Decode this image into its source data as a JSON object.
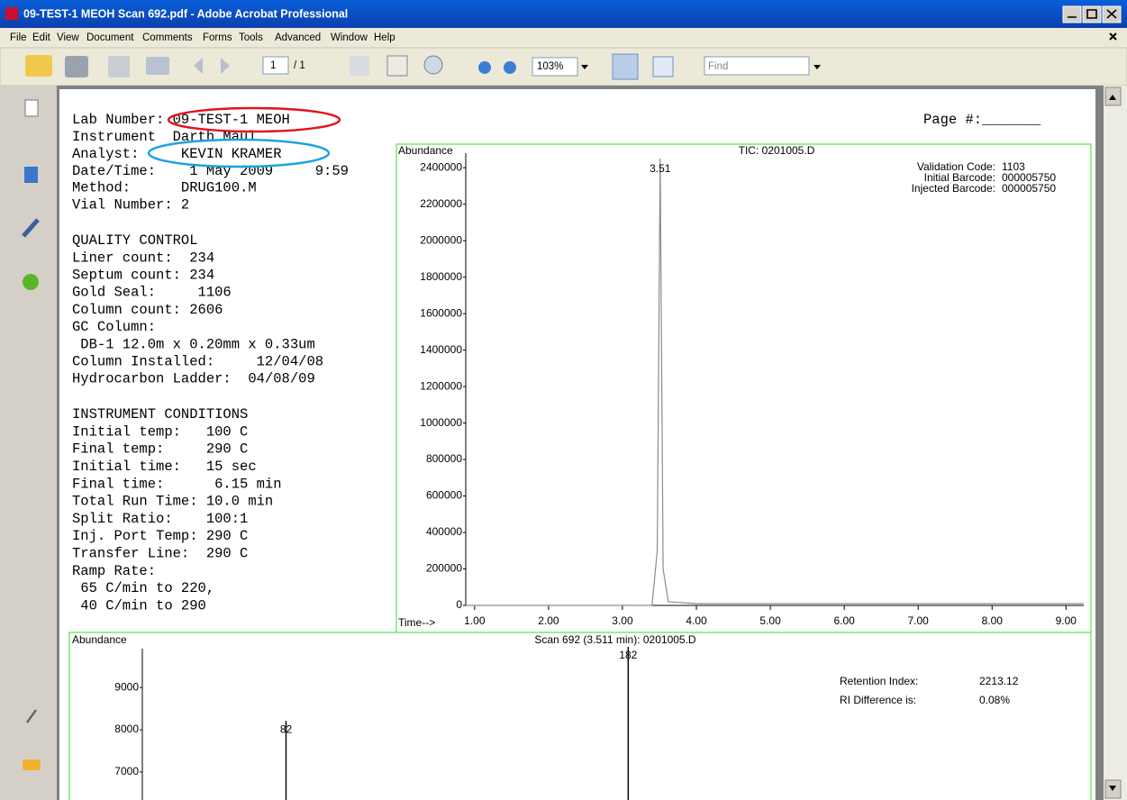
{
  "window": {
    "title": "09-TEST-1 MEOH Scan 692.pdf - Adobe Acrobat Professional"
  },
  "menu": [
    "File",
    "Edit",
    "View",
    "Document",
    "Comments",
    "Forms",
    "Tools",
    "Advanced",
    "Window",
    "Help"
  ],
  "toolbar": {
    "page": "1",
    "page_count": "/ 1",
    "zoom": "103%",
    "find": "Find"
  },
  "document": {
    "page_label": "Page #:_______",
    "header_lines": [
      "Lab Number: 09-TEST-1 MEOH",
      "Instrument  Darth Maul",
      "Analyst:     KEVIN KRAMER",
      "Date/Time:    1 May 2009     9:59",
      "Method:      DRUG100.M",
      "Vial Number: 2"
    ],
    "qc_lines": [
      "QUALITY CONTROL",
      "Liner count:  234",
      "Septum count: 234",
      "Gold Seal:     1106",
      "Column count: 2606",
      "GC Column:",
      " DB-1 12.0m x 0.20mm x 0.33um",
      "Column Installed:     12/04/08",
      "Hydrocarbon Ladder:  04/08/09"
    ],
    "conditions_lines": [
      "INSTRUMENT CONDITIONS",
      "Initial temp:   100 C",
      "Final temp:     290 C",
      "Initial time:   15 sec",
      "Final time:      6.15 min",
      "Total Run Time: 10.0 min",
      "Split Ratio:    100:1",
      "Inj. Port Temp: 290 C",
      "Transfer Line:  290 C",
      "Ramp Rate:",
      " 65 C/min to 220,",
      " 40 C/min to 290"
    ]
  },
  "chart_data": [
    {
      "type": "line",
      "title": "TIC: 0201005.D",
      "y_label": "Abundance",
      "x_label": "Time-->",
      "x": [
        0.88,
        3.4,
        3.47,
        3.51,
        3.55,
        3.62,
        4.0,
        9.24
      ],
      "values": [
        0,
        0,
        300000,
        2450000,
        200000,
        20000,
        10000,
        10000
      ],
      "color": "#8c8c8c",
      "peak_label": "3.51",
      "xlim": [
        0.88,
        9.24
      ],
      "xticks": [
        {
          "value": 1,
          "label": "1.00"
        },
        {
          "value": 2,
          "label": "2.00"
        },
        {
          "value": 3,
          "label": "3.00"
        },
        {
          "value": 4,
          "label": "4.00"
        },
        {
          "value": 5,
          "label": "5.00"
        },
        {
          "value": 6,
          "label": "6.00"
        },
        {
          "value": 7,
          "label": "7.00"
        },
        {
          "value": 8,
          "label": "8.00"
        },
        {
          "value": 9,
          "label": "9.00"
        }
      ],
      "ylim": [
        0,
        2480000
      ],
      "yticks": [
        0,
        200000,
        400000,
        600000,
        800000,
        1000000,
        1200000,
        1400000,
        1600000,
        1800000,
        2000000,
        2200000,
        2400000
      ],
      "annotations": [
        {
          "label": "Validation Code:",
          "value": "1103"
        },
        {
          "label": "Initial Barcode:",
          "value": "000005750"
        },
        {
          "label": "Injected Barcode:",
          "value": "000005750"
        }
      ]
    },
    {
      "type": "bar",
      "title": "Scan 692 (3.511 min): 0201005.D",
      "y_label": "Abundance",
      "x": [
        82,
        182
      ],
      "values": [
        8210,
        9960
      ],
      "color": "#000000",
      "xlim": [
        40,
        317
      ],
      "ylim": [
        6340,
        10280
      ],
      "yticks": [
        7000,
        8000,
        9000
      ],
      "annotations": [
        {
          "label": "Retention Index:",
          "value": "2213.12"
        },
        {
          "label": "RI Difference is:",
          "value": "0.08%"
        }
      ]
    }
  ]
}
